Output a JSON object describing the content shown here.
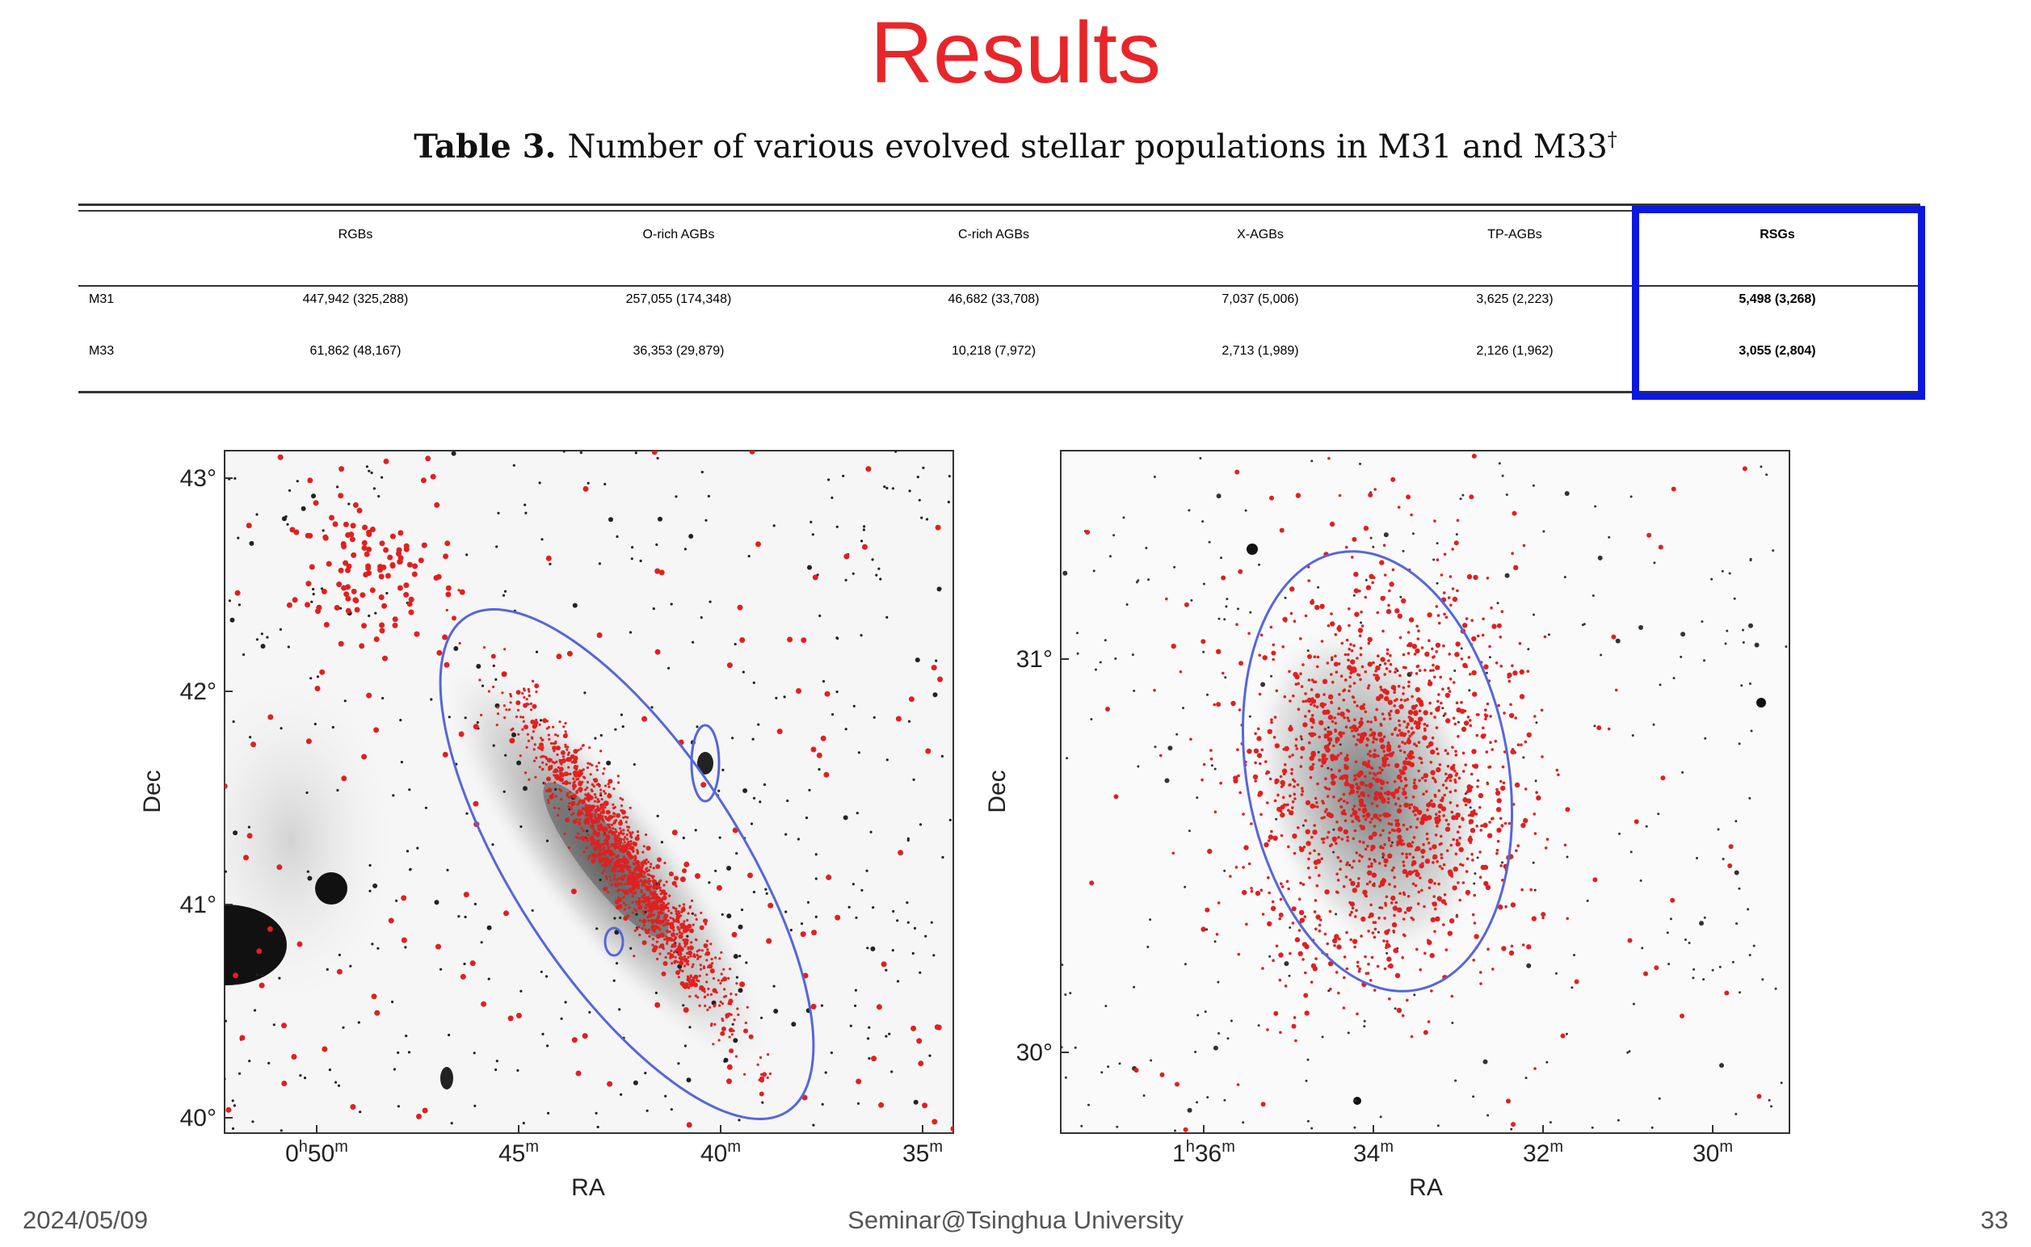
{
  "slide": {
    "title": "Results",
    "caption_label": "Table 3.",
    "caption_text": "Number of various evolved stellar populations in M31 and M33",
    "caption_mark": "†"
  },
  "table": {
    "columns": [
      "",
      "RGBs",
      "O-rich AGBs",
      "C-rich AGBs",
      "X-AGBs",
      "TP-AGBs",
      "RSGs"
    ],
    "rows": [
      [
        "M31",
        "447,942 (325,288)",
        "257,055 (174,348)",
        "46,682 (33,708)",
        "7,037 (5,006)",
        "3,625 (2,223)",
        "5,498 (3,268)"
      ],
      [
        "M33",
        "61,862 (48,167)",
        "36,353 (29,879)",
        "10,218 (7,972)",
        "2,713 (1,989)",
        "2,126 (1,962)",
        "3,055 (2,804)"
      ]
    ],
    "highlight_color": "#0a18e0"
  },
  "left_panel": {
    "y_ticks": [
      "43°",
      "42°",
      "41°",
      "40°"
    ],
    "x_ticks": [
      {
        "h": "0",
        "hu": "h",
        "m": "50",
        "mu": "m"
      },
      {
        "h": "",
        "hu": "",
        "m": "45",
        "mu": "m"
      },
      {
        "h": "",
        "hu": "",
        "m": "40",
        "mu": "m"
      },
      {
        "h": "",
        "hu": "",
        "m": "35",
        "mu": "m"
      }
    ],
    "xlabel": "RA",
    "ylabel": "Dec"
  },
  "right_panel": {
    "y_ticks": [
      "31°",
      "30°"
    ],
    "x_ticks": [
      {
        "h": "1",
        "hu": "h",
        "m": "36",
        "mu": "m"
      },
      {
        "h": "",
        "hu": "",
        "m": "34",
        "mu": "m"
      },
      {
        "h": "",
        "hu": "",
        "m": "32",
        "mu": "m"
      },
      {
        "h": "",
        "hu": "",
        "m": "30",
        "mu": "m"
      }
    ],
    "xlabel": "RA",
    "ylabel": "Dec"
  },
  "footer": {
    "date": "2024/05/09",
    "venue": "Seminar@Tsinghua University",
    "page": "33"
  },
  "colors": {
    "title": "#e8262a",
    "points": "#e02020",
    "ellipse": "#5566dd"
  }
}
